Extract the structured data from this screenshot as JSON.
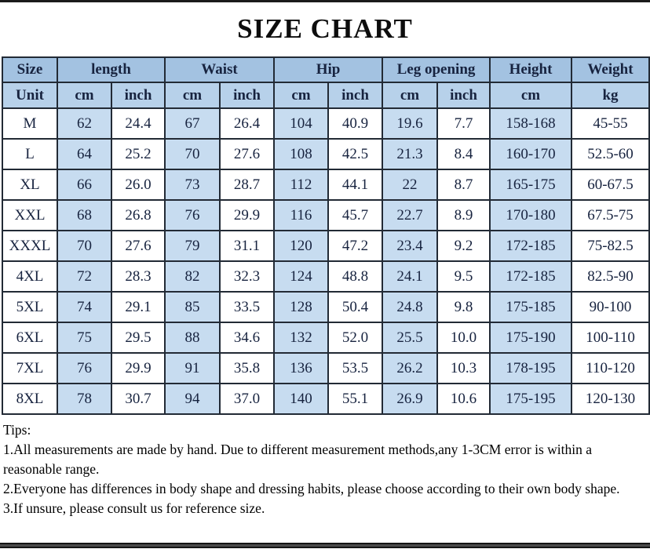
{
  "title": "SIZE CHART",
  "table": {
    "header_groups": [
      {
        "label": "Size",
        "span": 1
      },
      {
        "label": "length",
        "span": 2
      },
      {
        "label": "Waist",
        "span": 2
      },
      {
        "label": "Hip",
        "span": 2
      },
      {
        "label": "Leg opening",
        "span": 2
      },
      {
        "label": "Height",
        "span": 1
      },
      {
        "label": "Weight",
        "span": 1
      }
    ],
    "unit_row": [
      "Unit",
      "cm",
      "inch",
      "cm",
      "inch",
      "cm",
      "inch",
      "cm",
      "inch",
      "cm",
      "kg"
    ],
    "rows": [
      [
        "M",
        "62",
        "24.4",
        "67",
        "26.4",
        "104",
        "40.9",
        "19.6",
        "7.7",
        "158-168",
        "45-55"
      ],
      [
        "L",
        "64",
        "25.2",
        "70",
        "27.6",
        "108",
        "42.5",
        "21.3",
        "8.4",
        "160-170",
        "52.5-60"
      ],
      [
        "XL",
        "66",
        "26.0",
        "73",
        "28.7",
        "112",
        "44.1",
        "22",
        "8.7",
        "165-175",
        "60-67.5"
      ],
      [
        "XXL",
        "68",
        "26.8",
        "76",
        "29.9",
        "116",
        "45.7",
        "22.7",
        "8.9",
        "170-180",
        "67.5-75"
      ],
      [
        "XXXL",
        "70",
        "27.6",
        "79",
        "31.1",
        "120",
        "47.2",
        "23.4",
        "9.2",
        "172-185",
        "75-82.5"
      ],
      [
        "4XL",
        "72",
        "28.3",
        "82",
        "32.3",
        "124",
        "48.8",
        "24.1",
        "9.5",
        "172-185",
        "82.5-90"
      ],
      [
        "5XL",
        "74",
        "29.1",
        "85",
        "33.5",
        "128",
        "50.4",
        "24.8",
        "9.8",
        "175-185",
        "90-100"
      ],
      [
        "6XL",
        "75",
        "29.5",
        "88",
        "34.6",
        "132",
        "52.0",
        "25.5",
        "10.0",
        "175-190",
        "100-110"
      ],
      [
        "7XL",
        "76",
        "29.9",
        "91",
        "35.8",
        "136",
        "53.5",
        "26.2",
        "10.3",
        "178-195",
        "110-120"
      ],
      [
        "8XL",
        "78",
        "30.7",
        "94",
        "37.0",
        "140",
        "55.1",
        "26.9",
        "10.6",
        "175-195",
        "120-130"
      ]
    ]
  },
  "tips": {
    "heading": "Tips:",
    "items": [
      "1.All measurements are made by hand. Due to different measurement methods,any 1-3CM error is within a reasonable range.",
      "2.Everyone has differences in body shape and dressing habits, please choose according to their own body shape.",
      "3.If unsure, please consult us for reference size."
    ]
  },
  "colors": {
    "header_blue": "#a3c2e1",
    "unit_blue": "#b7d1ea",
    "data_blue": "#c7dcf0",
    "text_navy": "#17233f",
    "border": "#222a35"
  }
}
